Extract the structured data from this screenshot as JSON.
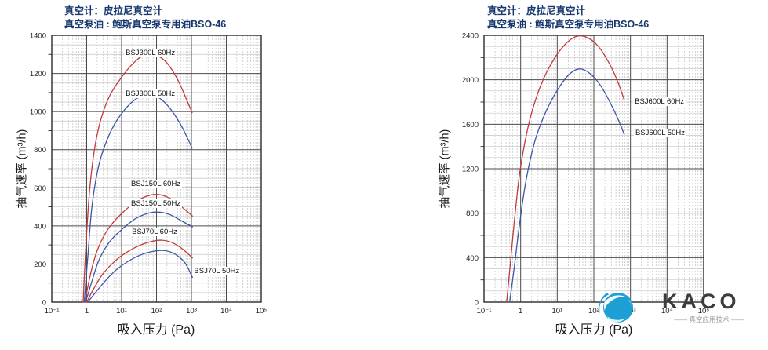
{
  "chart_data": [
    {
      "type": "line",
      "title_lines": [
        "真空计：皮拉尼真空计",
        "真空泵油 : 鲍斯真空泵专用油BSO-46"
      ],
      "xlabel": "吸入压力 (Pa)",
      "ylabel": "抽气速率 (m³/h)",
      "x_scale": "log",
      "x_decades": [
        -1,
        5
      ],
      "x_tick_labels": [
        "10⁻¹",
        "1",
        "10¹",
        "10²",
        "10³",
        "10⁴",
        "10⁵"
      ],
      "ylim": [
        0,
        1400
      ],
      "y_major_step": 200,
      "y_minor_step": 50,
      "y_axis_tick_step": 100,
      "grid": "log-linear graph paper",
      "legend": "labels beside curves",
      "series": [
        {
          "name": "BSJ300L 60Hz",
          "color": "#c03a3a",
          "label_frac": [
            0.345,
            0.05
          ],
          "points_logx_y": [
            [
              -0.1,
              0
            ],
            [
              -0.02,
              300
            ],
            [
              0.1,
              620
            ],
            [
              0.3,
              880
            ],
            [
              0.6,
              1060
            ],
            [
              1.0,
              1180
            ],
            [
              1.4,
              1265
            ],
            [
              1.7,
              1298
            ],
            [
              2.0,
              1295
            ],
            [
              2.3,
              1255
            ],
            [
              2.6,
              1170
            ],
            [
              2.82,
              1080
            ],
            [
              3.02,
              995
            ]
          ]
        },
        {
          "name": "BSJ300L 50Hz",
          "color": "#3c55a5",
          "label_frac": [
            0.345,
            0.203
          ],
          "points_logx_y": [
            [
              -0.07,
              0
            ],
            [
              0.03,
              230
            ],
            [
              0.15,
              500
            ],
            [
              0.35,
              720
            ],
            [
              0.65,
              880
            ],
            [
              1.0,
              990
            ],
            [
              1.4,
              1065
            ],
            [
              1.75,
              1090
            ],
            [
              2.05,
              1075
            ],
            [
              2.35,
              1025
            ],
            [
              2.65,
              945
            ],
            [
              2.85,
              875
            ],
            [
              3.02,
              808
            ]
          ]
        },
        {
          "name": "BSJ150L 60Hz",
          "color": "#c03a3a",
          "label_frac": [
            0.371,
            0.54
          ],
          "points_logx_y": [
            [
              -0.05,
              0
            ],
            [
              0.1,
              140
            ],
            [
              0.3,
              270
            ],
            [
              0.6,
              380
            ],
            [
              1.0,
              465
            ],
            [
              1.4,
              525
            ],
            [
              1.75,
              558
            ],
            [
              2.05,
              565
            ],
            [
              2.35,
              548
            ],
            [
              2.65,
              510
            ],
            [
              2.85,
              480
            ],
            [
              3.03,
              452
            ]
          ]
        },
        {
          "name": "BSJ150L 50Hz",
          "color": "#3c55a5",
          "label_frac": [
            0.371,
            0.615
          ],
          "points_logx_y": [
            [
              -0.03,
              0
            ],
            [
              0.15,
              110
            ],
            [
              0.35,
              220
            ],
            [
              0.65,
              315
            ],
            [
              1.0,
              380
            ],
            [
              1.4,
              438
            ],
            [
              1.8,
              468
            ],
            [
              2.1,
              472
            ],
            [
              2.4,
              458
            ],
            [
              2.7,
              428
            ],
            [
              3.03,
              395
            ]
          ]
        },
        {
          "name": "BSJ70L 60Hz",
          "color": "#c03a3a",
          "label_frac": [
            0.375,
            0.722
          ],
          "points_logx_y": [
            [
              0.0,
              0
            ],
            [
              0.2,
              70
            ],
            [
              0.45,
              145
            ],
            [
              0.75,
              205
            ],
            [
              1.05,
              250
            ],
            [
              1.45,
              292
            ],
            [
              1.85,
              318
            ],
            [
              2.15,
              325
            ],
            [
              2.45,
              312
            ],
            [
              2.75,
              278
            ],
            [
              3.03,
              232
            ]
          ]
        },
        {
          "name": "BSJ70L 50Hz",
          "color": "#3c55a5",
          "label_frac": [
            0.672,
            0.868
          ],
          "points_logx_y": [
            [
              0.03,
              0
            ],
            [
              0.25,
              50
            ],
            [
              0.55,
              115
            ],
            [
              0.85,
              170
            ],
            [
              1.15,
              210
            ],
            [
              1.55,
              248
            ],
            [
              1.95,
              268
            ],
            [
              2.25,
              270
            ],
            [
              2.55,
              250
            ],
            [
              2.82,
              205
            ],
            [
              3.03,
              130
            ]
          ]
        }
      ]
    },
    {
      "type": "line",
      "title_lines": [
        "真空计：皮拉尼真空计",
        "真空泵油 : 鲍斯真空泵专用油BSO-46"
      ],
      "xlabel": "吸入压力 (Pa)",
      "ylabel": "抽气速率 (m³/h)",
      "x_scale": "log",
      "x_decades": [
        -1,
        5
      ],
      "x_tick_labels": [
        "10⁻¹",
        "1",
        "10¹",
        "10²",
        "10³",
        "10⁴",
        "10⁵"
      ],
      "ylim": [
        0,
        2400
      ],
      "y_major_step": 400,
      "y_minor_step": 100,
      "y_axis_tick_step": 200,
      "grid": "log-linear graph paper",
      "legend": "labels beside curves",
      "series": [
        {
          "name": "BSJ600L 60Hz",
          "color": "#c03a3a",
          "label_frac": [
            0.679,
            0.232
          ],
          "points_logx_y": [
            [
              -0.38,
              0
            ],
            [
              -0.28,
              350
            ],
            [
              -0.15,
              800
            ],
            [
              0.0,
              1220
            ],
            [
              0.25,
              1640
            ],
            [
              0.55,
              1950
            ],
            [
              0.9,
              2180
            ],
            [
              1.25,
              2330
            ],
            [
              1.55,
              2393
            ],
            [
              1.85,
              2375
            ],
            [
              2.15,
              2290
            ],
            [
              2.45,
              2130
            ],
            [
              2.65,
              1985
            ],
            [
              2.83,
              1820
            ]
          ]
        },
        {
          "name": "BSJ600L 50Hz",
          "color": "#3c55a5",
          "label_frac": [
            0.682,
            0.35
          ],
          "points_logx_y": [
            [
              -0.3,
              0
            ],
            [
              -0.18,
              300
            ],
            [
              -0.03,
              700
            ],
            [
              0.15,
              1100
            ],
            [
              0.4,
              1460
            ],
            [
              0.7,
              1720
            ],
            [
              1.0,
              1905
            ],
            [
              1.3,
              2040
            ],
            [
              1.6,
              2098
            ],
            [
              1.9,
              2055
            ],
            [
              2.2,
              1940
            ],
            [
              2.5,
              1760
            ],
            [
              2.7,
              1615
            ],
            [
              2.83,
              1510
            ]
          ]
        }
      ]
    }
  ],
  "logo": {
    "name": "KACO",
    "tagline": "—— 真空应用技术 ——",
    "brand_color": "#1c9fd5"
  },
  "colors": {
    "title_navy": "#17386e",
    "curve_red": "#c03a3a",
    "curve_blue": "#3c55a5",
    "grid_major": "#4b4b4b",
    "grid_minor": "#c0c0c0"
  }
}
